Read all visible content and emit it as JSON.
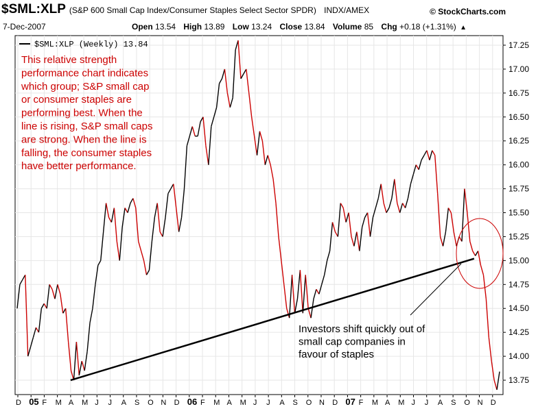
{
  "header": {
    "symbol": "$SML:XLP",
    "description": "(S&P 600 Small Cap Index/Consumer Staples Select Sector SPDR)",
    "exchange": "INDX/AMEX",
    "source": "© StockCharts.com",
    "date": "7-Dec-2007",
    "quote": {
      "open_label": "Open",
      "open": "13.54",
      "high_label": "High",
      "high": "13.89",
      "low_label": "Low",
      "low": "13.24",
      "close_label": "Close",
      "close": "13.84",
      "volume_label": "Volume",
      "volume": "85",
      "chg_label": "Chg",
      "chg": "+0.18 (+1.31%)",
      "arrow": "▲"
    }
  },
  "chart_data": {
    "type": "line",
    "legend": "$SML:XLP (Weekly) 13.84",
    "legend_position": "top-left",
    "grid": true,
    "y_axis_position": "right",
    "ylim": [
      13.6,
      17.35
    ],
    "yticks": [
      "13.75",
      "14.00",
      "14.25",
      "14.50",
      "14.75",
      "15.00",
      "15.25",
      "15.50",
      "15.75",
      "16.00",
      "16.25",
      "16.50",
      "16.75",
      "17.00",
      "17.25"
    ],
    "xticks": [
      "D",
      "05",
      "F",
      "M",
      "A",
      "M",
      "J",
      "J",
      "A",
      "S",
      "O",
      "N",
      "D",
      "06",
      "F",
      "M",
      "A",
      "M",
      "J",
      "J",
      "A",
      "S",
      "O",
      "N",
      "D",
      "07",
      "F",
      "M",
      "A",
      "M",
      "J",
      "J",
      "A",
      "S",
      "O",
      "N",
      "D"
    ],
    "x_start": "2004-12",
    "series": [
      {
        "values": [
          14.5,
          14.75,
          14.8,
          14.85,
          14.0,
          14.1,
          14.2,
          14.3,
          14.25,
          14.5,
          14.55,
          14.5,
          14.75,
          14.7,
          14.6,
          14.75,
          14.65,
          14.45,
          14.5,
          14.15,
          13.85,
          13.75,
          14.15,
          13.8,
          13.95,
          13.85,
          14.05,
          14.35,
          14.5,
          14.75,
          14.95,
          15.0,
          15.3,
          15.6,
          15.45,
          15.4,
          15.55,
          15.2,
          15.0,
          15.35,
          15.55,
          15.5,
          15.6,
          15.65,
          15.55,
          15.2,
          15.1,
          15.0,
          14.85,
          14.9,
          15.2,
          15.45,
          15.6,
          15.3,
          15.25,
          15.45,
          15.7,
          15.75,
          15.8,
          15.55,
          15.3,
          15.45,
          15.75,
          16.2,
          16.3,
          16.4,
          16.3,
          16.3,
          16.45,
          16.5,
          16.2,
          16.0,
          16.4,
          16.5,
          16.6,
          16.85,
          16.9,
          17.0,
          16.75,
          16.6,
          16.7,
          17.2,
          17.3,
          16.9,
          16.95,
          17.0,
          16.75,
          16.5,
          16.3,
          16.1,
          16.35,
          16.25,
          16.0,
          16.1,
          16.0,
          15.85,
          15.6,
          15.25,
          15.0,
          14.75,
          14.5,
          14.4,
          14.85,
          14.45,
          14.6,
          14.9,
          14.45,
          14.85,
          14.5,
          14.4,
          14.6,
          14.7,
          14.65,
          14.75,
          14.85,
          15.0,
          15.1,
          15.4,
          15.3,
          15.25,
          15.6,
          15.55,
          15.4,
          15.5,
          15.25,
          15.15,
          15.3,
          15.1,
          15.35,
          15.45,
          15.5,
          15.25,
          15.45,
          15.55,
          15.65,
          15.8,
          15.6,
          15.5,
          15.55,
          15.65,
          15.85,
          15.6,
          15.5,
          15.6,
          15.55,
          15.65,
          15.8,
          15.9,
          16.0,
          15.95,
          16.05,
          16.1,
          16.15,
          16.05,
          16.15,
          16.1,
          15.7,
          15.25,
          15.15,
          15.3,
          15.55,
          15.5,
          15.3,
          15.15,
          15.25,
          15.2,
          15.75,
          15.5,
          15.2,
          15.1,
          15.05,
          15.1,
          14.95,
          14.85,
          14.6,
          14.2,
          13.95,
          13.75,
          13.65,
          13.84
        ]
      }
    ],
    "trendline": {
      "start": {
        "x": "2005-04",
        "y": 13.75
      },
      "end": {
        "x": "2007-10",
        "y": 15.02
      }
    },
    "annotations": {
      "note_lines": [
        "This relative strength",
        "performance chart indicates",
        "which group; S&P small cap",
        "or consumer staples are",
        "performing best.  When the",
        "line is rising, S&P small caps",
        "are strong.  When the line is",
        "falling, the consumer staples",
        "have better performance."
      ],
      "note_color": "#cc0000",
      "callout_lines": [
        "Investors shift quickly out of",
        "small cap companies in",
        "favour of staples"
      ]
    },
    "colors": {
      "line": "#000000",
      "line_down": "#cc0000",
      "grid": "#e6e6e6",
      "circle": "#cc0000"
    }
  }
}
